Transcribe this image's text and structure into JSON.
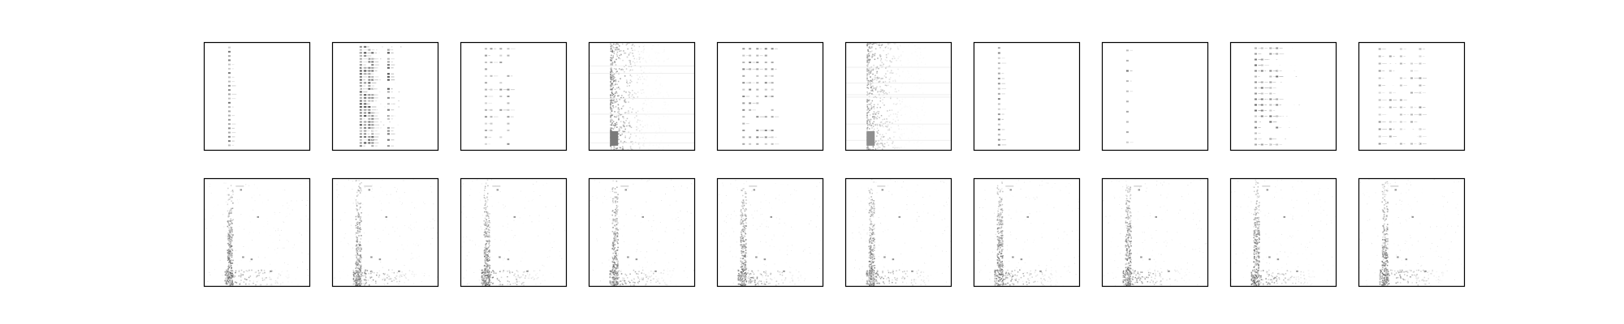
{
  "chart_data": {
    "type": "heatmap",
    "title": "",
    "xlabel": "",
    "ylabel": "",
    "grid": false,
    "colormap": "Greys",
    "ticks": false,
    "layout": {
      "rows": 2,
      "cols": 10
    },
    "panels": [
      {
        "row": 0,
        "col": 0,
        "pattern": "dotted-column",
        "columns": [
          0.24
        ],
        "rows": 24,
        "intensity": 0.55
      },
      {
        "row": 0,
        "col": 1,
        "pattern": "dense-column-cluster",
        "columns": [
          0.27,
          0.31,
          0.35,
          0.38,
          0.53
        ],
        "rows": 34,
        "intensity": 0.7
      },
      {
        "row": 0,
        "col": 2,
        "pattern": "dotted-column",
        "columns": [
          0.24,
          0.29,
          0.38,
          0.45
        ],
        "rows": 15,
        "intensity": 0.45
      },
      {
        "row": 0,
        "col": 3,
        "pattern": "diffuse-band",
        "columns": [
          0.2,
          0.25
        ],
        "rows": 40,
        "intensity": 0.65
      },
      {
        "row": 0,
        "col": 4,
        "pattern": "dotted-column",
        "columns": [
          0.25,
          0.31,
          0.38,
          0.46,
          0.52
        ],
        "rows": 15,
        "intensity": 0.5
      },
      {
        "row": 0,
        "col": 5,
        "pattern": "diffuse-band",
        "columns": [
          0.2,
          0.26
        ],
        "rows": 40,
        "intensity": 0.55
      },
      {
        "row": 0,
        "col": 6,
        "pattern": "dotted-column",
        "columns": [
          0.24
        ],
        "rows": 20,
        "intensity": 0.5
      },
      {
        "row": 0,
        "col": 7,
        "pattern": "dotted-column",
        "columns": [
          0.24
        ],
        "rows": 10,
        "intensity": 0.6
      },
      {
        "row": 0,
        "col": 8,
        "pattern": "dense-column-cluster",
        "columns": [
          0.24,
          0.3,
          0.38,
          0.44
        ],
        "rows": 18,
        "intensity": 0.6
      },
      {
        "row": 0,
        "col": 9,
        "pattern": "dotted-grid",
        "columns": [
          0.2,
          0.3,
          0.4,
          0.5,
          0.58
        ],
        "rows": 14,
        "intensity": 0.45
      },
      {
        "row": 1,
        "col": 0,
        "pattern": "contact-map",
        "columns": [
          0.24
        ],
        "rows": 0,
        "intensity": 0.7
      },
      {
        "row": 1,
        "col": 1,
        "pattern": "contact-map",
        "columns": [
          0.24
        ],
        "rows": 0,
        "intensity": 0.7
      },
      {
        "row": 1,
        "col": 2,
        "pattern": "contact-map",
        "columns": [
          0.24
        ],
        "rows": 0,
        "intensity": 0.7
      },
      {
        "row": 1,
        "col": 3,
        "pattern": "contact-map",
        "columns": [
          0.24
        ],
        "rows": 0,
        "intensity": 0.7
      },
      {
        "row": 1,
        "col": 4,
        "pattern": "contact-map",
        "columns": [
          0.24
        ],
        "rows": 0,
        "intensity": 0.7
      },
      {
        "row": 1,
        "col": 5,
        "pattern": "contact-map",
        "columns": [
          0.24
        ],
        "rows": 0,
        "intensity": 0.7
      },
      {
        "row": 1,
        "col": 6,
        "pattern": "contact-map",
        "columns": [
          0.24
        ],
        "rows": 0,
        "intensity": 0.7
      },
      {
        "row": 1,
        "col": 7,
        "pattern": "contact-map",
        "columns": [
          0.24
        ],
        "rows": 0,
        "intensity": 0.7
      },
      {
        "row": 1,
        "col": 8,
        "pattern": "contact-map",
        "columns": [
          0.24
        ],
        "rows": 0,
        "intensity": 0.7
      },
      {
        "row": 1,
        "col": 9,
        "pattern": "contact-map",
        "columns": [
          0.24
        ],
        "rows": 0,
        "intensity": 0.7
      }
    ]
  }
}
